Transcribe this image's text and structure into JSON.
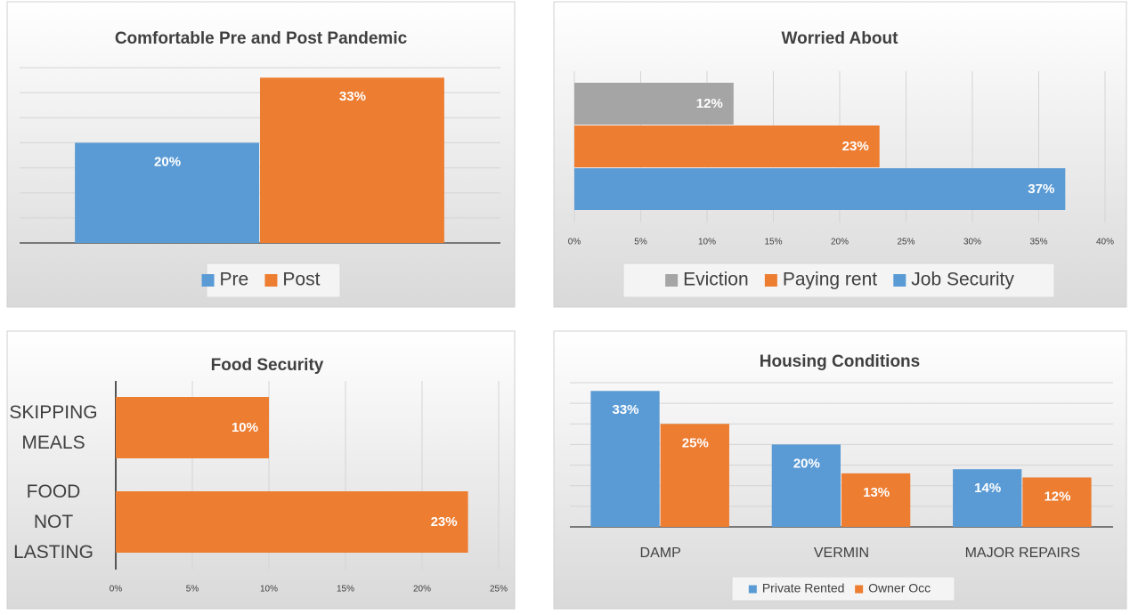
{
  "chart_data": [
    {
      "type": "bar",
      "title": "Comfortable Pre and Post Pandemic",
      "categories": [
        null
      ],
      "series": [
        {
          "name": "Pre",
          "color": "#5b9bd5",
          "values": [
            20
          ],
          "value_labels": [
            "20%"
          ]
        },
        {
          "name": "Post",
          "color": "#ed7d31",
          "values": [
            33
          ],
          "value_labels": [
            "33%"
          ]
        }
      ],
      "ylim": [
        0,
        35
      ],
      "yticks": [
        0,
        5,
        10,
        15,
        20,
        25,
        30,
        35
      ],
      "grid": true,
      "legend": "bottom"
    },
    {
      "type": "barh",
      "title": "Worried About",
      "categories": [
        null
      ],
      "series": [
        {
          "name": "Eviction",
          "color": "#a5a5a5",
          "values": [
            12
          ],
          "value_labels": [
            "12%"
          ]
        },
        {
          "name": "Paying rent",
          "color": "#ed7d31",
          "values": [
            23
          ],
          "value_labels": [
            "23%"
          ]
        },
        {
          "name": "Job Security",
          "color": "#5b9bd5",
          "values": [
            37
          ],
          "value_labels": [
            "37%"
          ]
        }
      ],
      "xlim": [
        0,
        40
      ],
      "xticks": [
        {
          "value": 0,
          "label": "0%"
        },
        {
          "value": 5,
          "label": "5%"
        },
        {
          "value": 10,
          "label": "10%"
        },
        {
          "value": 15,
          "label": "15%"
        },
        {
          "value": 20,
          "label": "20%"
        },
        {
          "value": 25,
          "label": "25%"
        },
        {
          "value": 30,
          "label": "30%"
        },
        {
          "value": 35,
          "label": "35%"
        },
        {
          "value": 40,
          "label": "40%"
        }
      ],
      "grid": true,
      "legend": "bottom"
    },
    {
      "type": "barh",
      "title": "Food Security",
      "categories": [
        "SKIPPING MEALS",
        "FOOD NOT LASTING"
      ],
      "series": [
        {
          "color": "#ed7d31",
          "values": [
            10,
            23
          ],
          "value_labels": [
            "10%",
            "23%"
          ]
        }
      ],
      "xlim": [
        0,
        25
      ],
      "xticks": [
        {
          "value": 0,
          "label": "0%"
        },
        {
          "value": 5,
          "label": "5%"
        },
        {
          "value": 10,
          "label": "10%"
        },
        {
          "value": 15,
          "label": "15%"
        },
        {
          "value": 20,
          "label": "20%"
        },
        {
          "value": 25,
          "label": "25%"
        }
      ],
      "grid": true
    },
    {
      "type": "bar",
      "title": "Housing Conditions",
      "categories": [
        "DAMP",
        "VERMIN",
        "MAJOR REPAIRS"
      ],
      "series": [
        {
          "name": "Private Rented",
          "color": "#5b9bd5",
          "values": [
            33,
            20,
            14
          ],
          "value_labels": [
            "33%",
            "20%",
            "14%"
          ]
        },
        {
          "name": "Owner Occ",
          "color": "#ed7d31",
          "values": [
            25,
            13,
            12
          ],
          "value_labels": [
            "25%",
            "13%",
            "12%"
          ]
        }
      ],
      "ylim": [
        0,
        35
      ],
      "yticks": [
        0,
        5,
        10,
        15,
        20,
        25,
        30,
        35
      ],
      "grid": true,
      "legend": "bottom"
    }
  ]
}
